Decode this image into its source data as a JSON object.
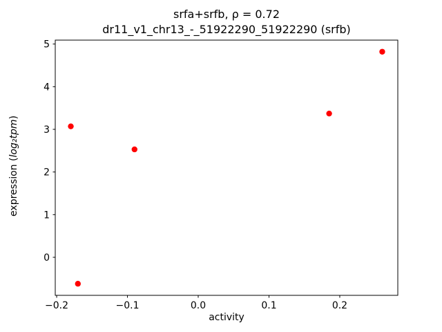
{
  "chart_data": {
    "type": "scatter",
    "title": "srfa+srfb, ρ = 0.72",
    "subtitle": "dr11_v1_chr13_-_51922290_51922290 (srfb)",
    "xlabel": "activity",
    "ylabel": "expression (log₂tpm)",
    "ylabel_parts": {
      "prefix": "expression (",
      "math": "log₂tpm",
      "suffix": ")"
    },
    "points": [
      {
        "x": -0.18,
        "y": 3.07
      },
      {
        "x": -0.17,
        "y": -0.62
      },
      {
        "x": -0.09,
        "y": 2.53
      },
      {
        "x": 0.185,
        "y": 3.37
      },
      {
        "x": 0.26,
        "y": 4.82
      }
    ],
    "xticks": [
      -0.2,
      -0.1,
      0.0,
      0.1,
      0.2
    ],
    "xtick_labels": [
      "−0.2",
      "−0.1",
      "0.0",
      "0.1",
      "0.2"
    ],
    "yticks": [
      0,
      1,
      2,
      3,
      4,
      5
    ],
    "ytick_labels": [
      "0",
      "1",
      "2",
      "3",
      "4",
      "5"
    ],
    "xlim": [
      -0.202,
      0.282
    ],
    "ylim": [
      -0.892,
      5.092
    ],
    "marker_color": "#ff0000",
    "marker_size_px": 4.2,
    "legend": "none",
    "grid": false
  }
}
